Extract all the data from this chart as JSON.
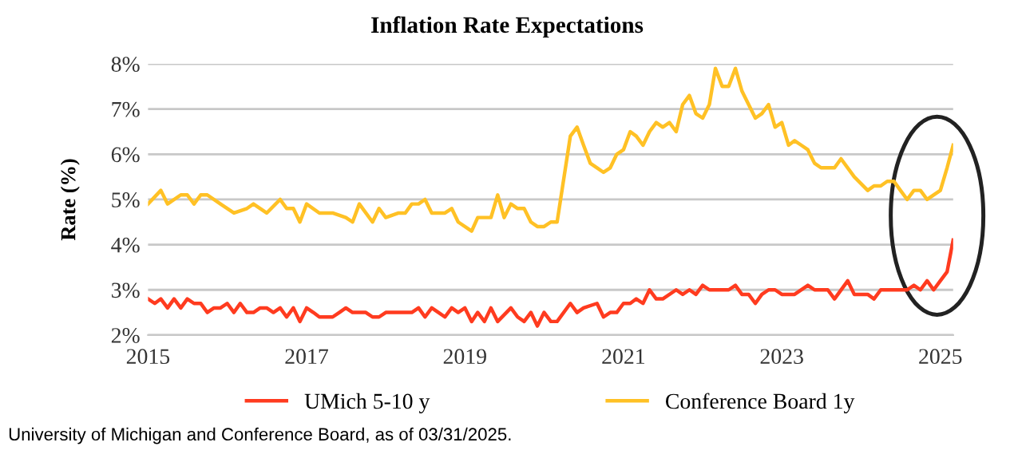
{
  "chart_data": {
    "type": "line",
    "title": "Inflation Rate Expectations",
    "ylabel": "Rate (%)",
    "annotations": [
      "University of Michigan and Conference Board, as of 03/31/2025."
    ],
    "xlim": [
      "2015-01",
      "2025-03"
    ],
    "xticks": [
      {
        "value": "2015-01",
        "label": "2015"
      },
      {
        "value": "2017-01",
        "label": "2017"
      },
      {
        "value": "2019-01",
        "label": "2019"
      },
      {
        "value": "2021-01",
        "label": "2021"
      },
      {
        "value": "2023-01",
        "label": "2023"
      },
      {
        "value": "2025-01",
        "label": "2025"
      }
    ],
    "ylim": [
      2,
      8
    ],
    "yticks": [
      {
        "value": 2,
        "label": "2%"
      },
      {
        "value": 3,
        "label": "3%"
      },
      {
        "value": 4,
        "label": "4%"
      },
      {
        "value": 5,
        "label": "5%"
      },
      {
        "value": 6,
        "label": "6%"
      },
      {
        "value": 7,
        "label": "7%"
      },
      {
        "value": 8,
        "label": "8%"
      }
    ],
    "grid": "y",
    "legend": "bottom",
    "marker": "none",
    "line_style": "solid",
    "series": [
      {
        "name": "UMich 5-10 y",
        "color": "#ff3b1f",
        "x": [
          "2015-01",
          "2015-02",
          "2015-03",
          "2015-04",
          "2015-05",
          "2015-06",
          "2015-07",
          "2015-08",
          "2015-09",
          "2015-10",
          "2015-11",
          "2015-12",
          "2016-01",
          "2016-02",
          "2016-03",
          "2016-04",
          "2016-05",
          "2016-06",
          "2016-07",
          "2016-08",
          "2016-09",
          "2016-10",
          "2016-11",
          "2016-12",
          "2017-01",
          "2017-02",
          "2017-03",
          "2017-05",
          "2017-06",
          "2017-07",
          "2017-08",
          "2017-10",
          "2017-11",
          "2017-12",
          "2018-01",
          "2018-05",
          "2018-06",
          "2018-07",
          "2018-08",
          "2018-09",
          "2018-10",
          "2018-11",
          "2018-12",
          "2019-01",
          "2019-02",
          "2019-03",
          "2019-04",
          "2019-05",
          "2019-06",
          "2019-08",
          "2019-09",
          "2019-10",
          "2019-11",
          "2019-12",
          "2020-01",
          "2020-02",
          "2020-03",
          "2020-05",
          "2020-06",
          "2020-07",
          "2020-09",
          "2020-10",
          "2020-11",
          "2020-12",
          "2021-01",
          "2021-02",
          "2021-03",
          "2021-04",
          "2021-05",
          "2021-06",
          "2021-07",
          "2021-09",
          "2021-10",
          "2021-11",
          "2021-12",
          "2022-01",
          "2022-02",
          "2022-05",
          "2022-06",
          "2022-07",
          "2022-08",
          "2022-09",
          "2022-10",
          "2022-11",
          "2022-12",
          "2023-01",
          "2023-03",
          "2023-05",
          "2023-06",
          "2023-08",
          "2023-09",
          "2023-11",
          "2023-12",
          "2024-02",
          "2024-03",
          "2024-04",
          "2024-08",
          "2024-09",
          "2024-10",
          "2024-11",
          "2024-12",
          "2025-01",
          "2025-02",
          "2025-03"
        ],
        "values": [
          2.8,
          2.7,
          2.8,
          2.6,
          2.8,
          2.6,
          2.8,
          2.7,
          2.7,
          2.5,
          2.6,
          2.6,
          2.7,
          2.5,
          2.7,
          2.5,
          2.5,
          2.6,
          2.6,
          2.5,
          2.6,
          2.4,
          2.6,
          2.3,
          2.6,
          2.5,
          2.4,
          2.4,
          2.5,
          2.6,
          2.5,
          2.5,
          2.4,
          2.4,
          2.5,
          2.5,
          2.6,
          2.4,
          2.6,
          2.5,
          2.4,
          2.6,
          2.5,
          2.6,
          2.3,
          2.5,
          2.3,
          2.6,
          2.3,
          2.6,
          2.4,
          2.3,
          2.5,
          2.2,
          2.5,
          2.3,
          2.3,
          2.7,
          2.5,
          2.6,
          2.7,
          2.4,
          2.5,
          2.5,
          2.7,
          2.7,
          2.8,
          2.7,
          3.0,
          2.8,
          2.8,
          3.0,
          2.9,
          3.0,
          2.9,
          3.1,
          3.0,
          3.0,
          3.1,
          2.9,
          2.9,
          2.7,
          2.9,
          3.0,
          3.0,
          2.9,
          2.9,
          3.1,
          3.0,
          3.0,
          2.8,
          3.2,
          2.9,
          2.9,
          2.8,
          3.0,
          3.0,
          3.1,
          3.0,
          3.2,
          3.0,
          3.2,
          3.4,
          4.1
        ]
      },
      {
        "name": "Conference Board 1y",
        "color": "#ffc125",
        "x": [
          "2015-01",
          "2015-03",
          "2015-04",
          "2015-06",
          "2015-07",
          "2015-08",
          "2015-09",
          "2015-10",
          "2015-12",
          "2016-02",
          "2016-04",
          "2016-05",
          "2016-07",
          "2016-09",
          "2016-10",
          "2016-11",
          "2016-12",
          "2017-01",
          "2017-03",
          "2017-05",
          "2017-07",
          "2017-08",
          "2017-09",
          "2017-11",
          "2017-12",
          "2018-01",
          "2018-03",
          "2018-04",
          "2018-05",
          "2018-06",
          "2018-07",
          "2018-08",
          "2018-10",
          "2018-11",
          "2018-12",
          "2019-02",
          "2019-03",
          "2019-05",
          "2019-06",
          "2019-07",
          "2019-08",
          "2019-09",
          "2019-10",
          "2019-11",
          "2019-12",
          "2020-01",
          "2020-02",
          "2020-03",
          "2020-05",
          "2020-06",
          "2020-07",
          "2020-08",
          "2020-09",
          "2020-10",
          "2020-11",
          "2020-12",
          "2021-01",
          "2021-02",
          "2021-03",
          "2021-04",
          "2021-05",
          "2021-06",
          "2021-07",
          "2021-08",
          "2021-09",
          "2021-10",
          "2021-11",
          "2021-12",
          "2022-01",
          "2022-02",
          "2022-03",
          "2022-04",
          "2022-05",
          "2022-06",
          "2022-07",
          "2022-08",
          "2022-09",
          "2022-10",
          "2022-11",
          "2022-12",
          "2023-01",
          "2023-02",
          "2023-03",
          "2023-04",
          "2023-05",
          "2023-06",
          "2023-07",
          "2023-09",
          "2023-10",
          "2023-12",
          "2024-02",
          "2024-03",
          "2024-04",
          "2024-05",
          "2024-06",
          "2024-07",
          "2024-08",
          "2024-09",
          "2024-10",
          "2024-11",
          "2025-01",
          "2025-02",
          "2025-03"
        ],
        "values": [
          4.9,
          5.2,
          4.9,
          5.1,
          5.1,
          4.9,
          5.1,
          5.1,
          4.9,
          4.7,
          4.8,
          4.9,
          4.7,
          5.0,
          4.8,
          4.8,
          4.5,
          4.9,
          4.7,
          4.7,
          4.6,
          4.5,
          4.9,
          4.5,
          4.8,
          4.6,
          4.7,
          4.7,
          4.9,
          4.9,
          5.0,
          4.7,
          4.7,
          4.8,
          4.5,
          4.3,
          4.6,
          4.6,
          5.1,
          4.6,
          4.9,
          4.8,
          4.8,
          4.5,
          4.4,
          4.4,
          4.5,
          4.5,
          6.4,
          6.6,
          6.2,
          5.8,
          5.7,
          5.6,
          5.7,
          6.0,
          6.1,
          6.5,
          6.4,
          6.2,
          6.5,
          6.7,
          6.6,
          6.7,
          6.5,
          7.1,
          7.3,
          6.9,
          6.8,
          7.1,
          7.9,
          7.5,
          7.5,
          7.9,
          7.4,
          7.1,
          6.8,
          6.9,
          7.1,
          6.6,
          6.7,
          6.2,
          6.3,
          6.2,
          6.1,
          5.8,
          5.7,
          5.7,
          5.9,
          5.5,
          5.2,
          5.3,
          5.3,
          5.4,
          5.4,
          5.2,
          5.0,
          5.2,
          5.2,
          5.0,
          5.2,
          5.7,
          6.2
        ]
      }
    ]
  }
}
